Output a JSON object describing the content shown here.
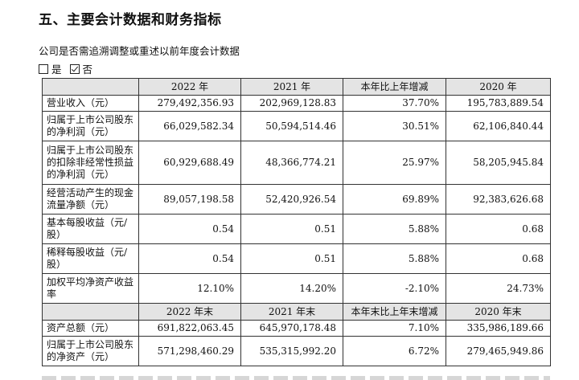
{
  "heading": "五、主要会计数据和财务指标",
  "question": "公司是否需追溯调整或重述以前年度会计数据",
  "choices": [
    {
      "label": "是",
      "checked": false
    },
    {
      "label": "否",
      "checked": true
    }
  ],
  "table": {
    "header1": [
      "2022 年",
      "2021 年",
      "本年比上年增减",
      "2020 年"
    ],
    "rows1": [
      {
        "label": "营业收入（元）",
        "values": [
          "279,492,356.93",
          "202,969,128.83",
          "37.70%",
          "195,783,889.54"
        ]
      },
      {
        "label": "归属于上市公司股东的净利润（元）",
        "values": [
          "66,029,582.34",
          "50,594,514.46",
          "30.51%",
          "62,106,840.44"
        ]
      },
      {
        "label": "归属于上市公司股东的扣除非经常性损益的净利润（元）",
        "values": [
          "60,929,688.49",
          "48,366,774.21",
          "25.97%",
          "58,205,945.84"
        ]
      },
      {
        "label": "经营活动产生的现金流量净额（元）",
        "values": [
          "89,057,198.58",
          "52,420,926.54",
          "69.89%",
          "92,383,626.68"
        ]
      },
      {
        "label": "基本每股收益（元/股）",
        "values": [
          "0.54",
          "0.51",
          "5.88%",
          "0.68"
        ]
      },
      {
        "label": "稀释每股收益（元/股）",
        "values": [
          "0.54",
          "0.51",
          "5.88%",
          "0.68"
        ]
      },
      {
        "label": "加权平均净资产收益率",
        "values": [
          "12.10%",
          "14.20%",
          "-2.10%",
          "24.73%"
        ]
      }
    ],
    "header2": [
      "2022 年末",
      "2021 年末",
      "本年末比上年末增减",
      "2020 年末"
    ],
    "rows2": [
      {
        "label": "资产总额（元）",
        "values": [
          "691,822,063.45",
          "645,970,178.48",
          "7.10%",
          "335,986,189.66"
        ]
      },
      {
        "label": "归属于上市公司股东的净资产（元）",
        "values": [
          "571,298,460.29",
          "535,315,992.20",
          "6.72%",
          "279,465,949.86"
        ]
      }
    ]
  }
}
